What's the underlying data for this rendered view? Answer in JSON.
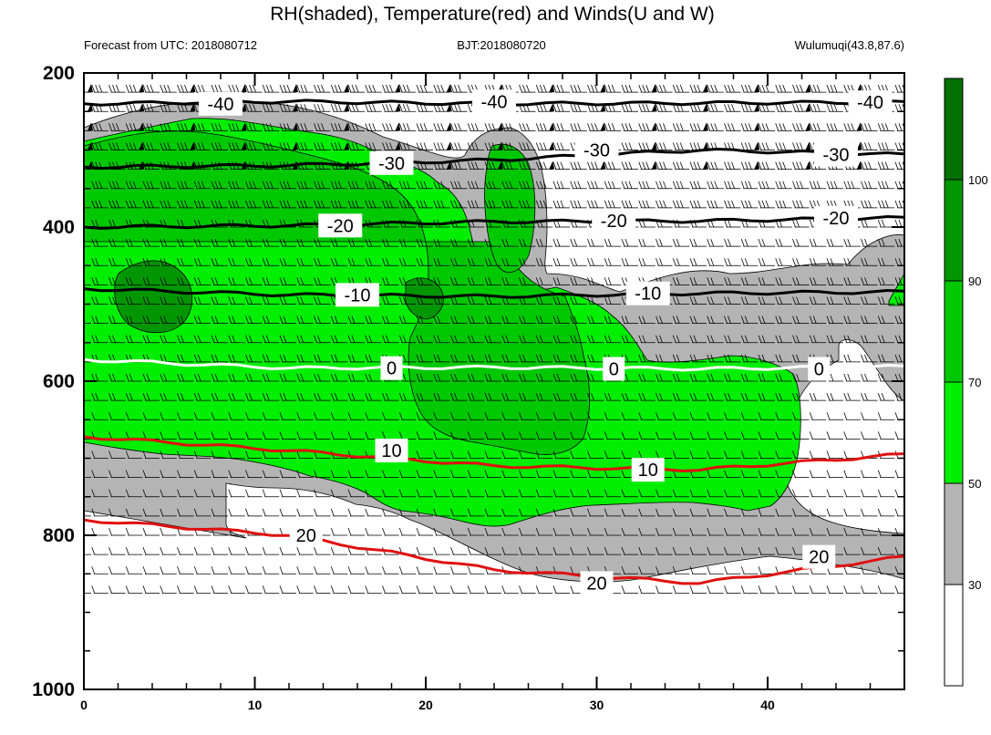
{
  "chart_data": {
    "type": "contour",
    "title": "RH(shaded), Temperature(red) and Winds(U and W)",
    "subtitle_left": "Forecast from UTC: 2018080712",
    "subtitle_center": "BJT:2018080720",
    "subtitle_right": "Wulumuqi(43.8,87.6)",
    "xlabel": "",
    "ylabel": "",
    "xlim": [
      0,
      48
    ],
    "ylim": [
      1000,
      200
    ],
    "x_ticks": [
      0,
      10,
      20,
      30,
      40
    ],
    "y_ticks": [
      200,
      400,
      600,
      800,
      1000
    ],
    "colorbar": {
      "levels": [
        30,
        50,
        70,
        90,
        100
      ],
      "colors": [
        "#ffffff",
        "#b4b4b4",
        "#00ee00",
        "#00c800",
        "#009600",
        "#007000"
      ]
    },
    "temperature_contours": [
      {
        "label": "-40",
        "color": "#000000",
        "label_positions": [
          [
            8,
            240
          ],
          [
            24,
            237
          ],
          [
            46,
            238
          ]
        ],
        "y": [
          240,
          237,
          240,
          239,
          238
        ]
      },
      {
        "label": "-30",
        "color": "#000000",
        "label_positions": [
          [
            18,
            317
          ],
          [
            30,
            300
          ],
          [
            44,
            306
          ]
        ],
        "y": [
          322,
          320,
          313,
          300,
          306
        ]
      },
      {
        "label": "-20",
        "color": "#000000",
        "label_positions": [
          [
            15,
            398
          ],
          [
            31,
            392
          ],
          [
            44,
            388
          ]
        ],
        "y": [
          400,
          398,
          393,
          392,
          388
        ]
      },
      {
        "label": "-10",
        "color": "#000000",
        "label_positions": [
          [
            16,
            488
          ],
          [
            33,
            486
          ]
        ],
        "y": [
          480,
          488,
          490,
          486,
          484
        ]
      },
      {
        "label": "0",
        "color": "#ffffff",
        "label_positions": [
          [
            18,
            583
          ],
          [
            31,
            584
          ],
          [
            43,
            584
          ]
        ],
        "y": [
          572,
          583,
          582,
          584,
          581
        ]
      },
      {
        "label": "10",
        "color": "#e01010",
        "label_positions": [
          [
            18,
            690
          ],
          [
            33,
            715
          ]
        ],
        "y": [
          672,
          690,
          710,
          715,
          695
        ]
      },
      {
        "label": "20",
        "color": "#e01010",
        "label_positions": [
          [
            13,
            800
          ],
          [
            30,
            862
          ],
          [
            43,
            828
          ]
        ],
        "y": [
          780,
          800,
          845,
          862,
          828
        ]
      }
    ]
  }
}
